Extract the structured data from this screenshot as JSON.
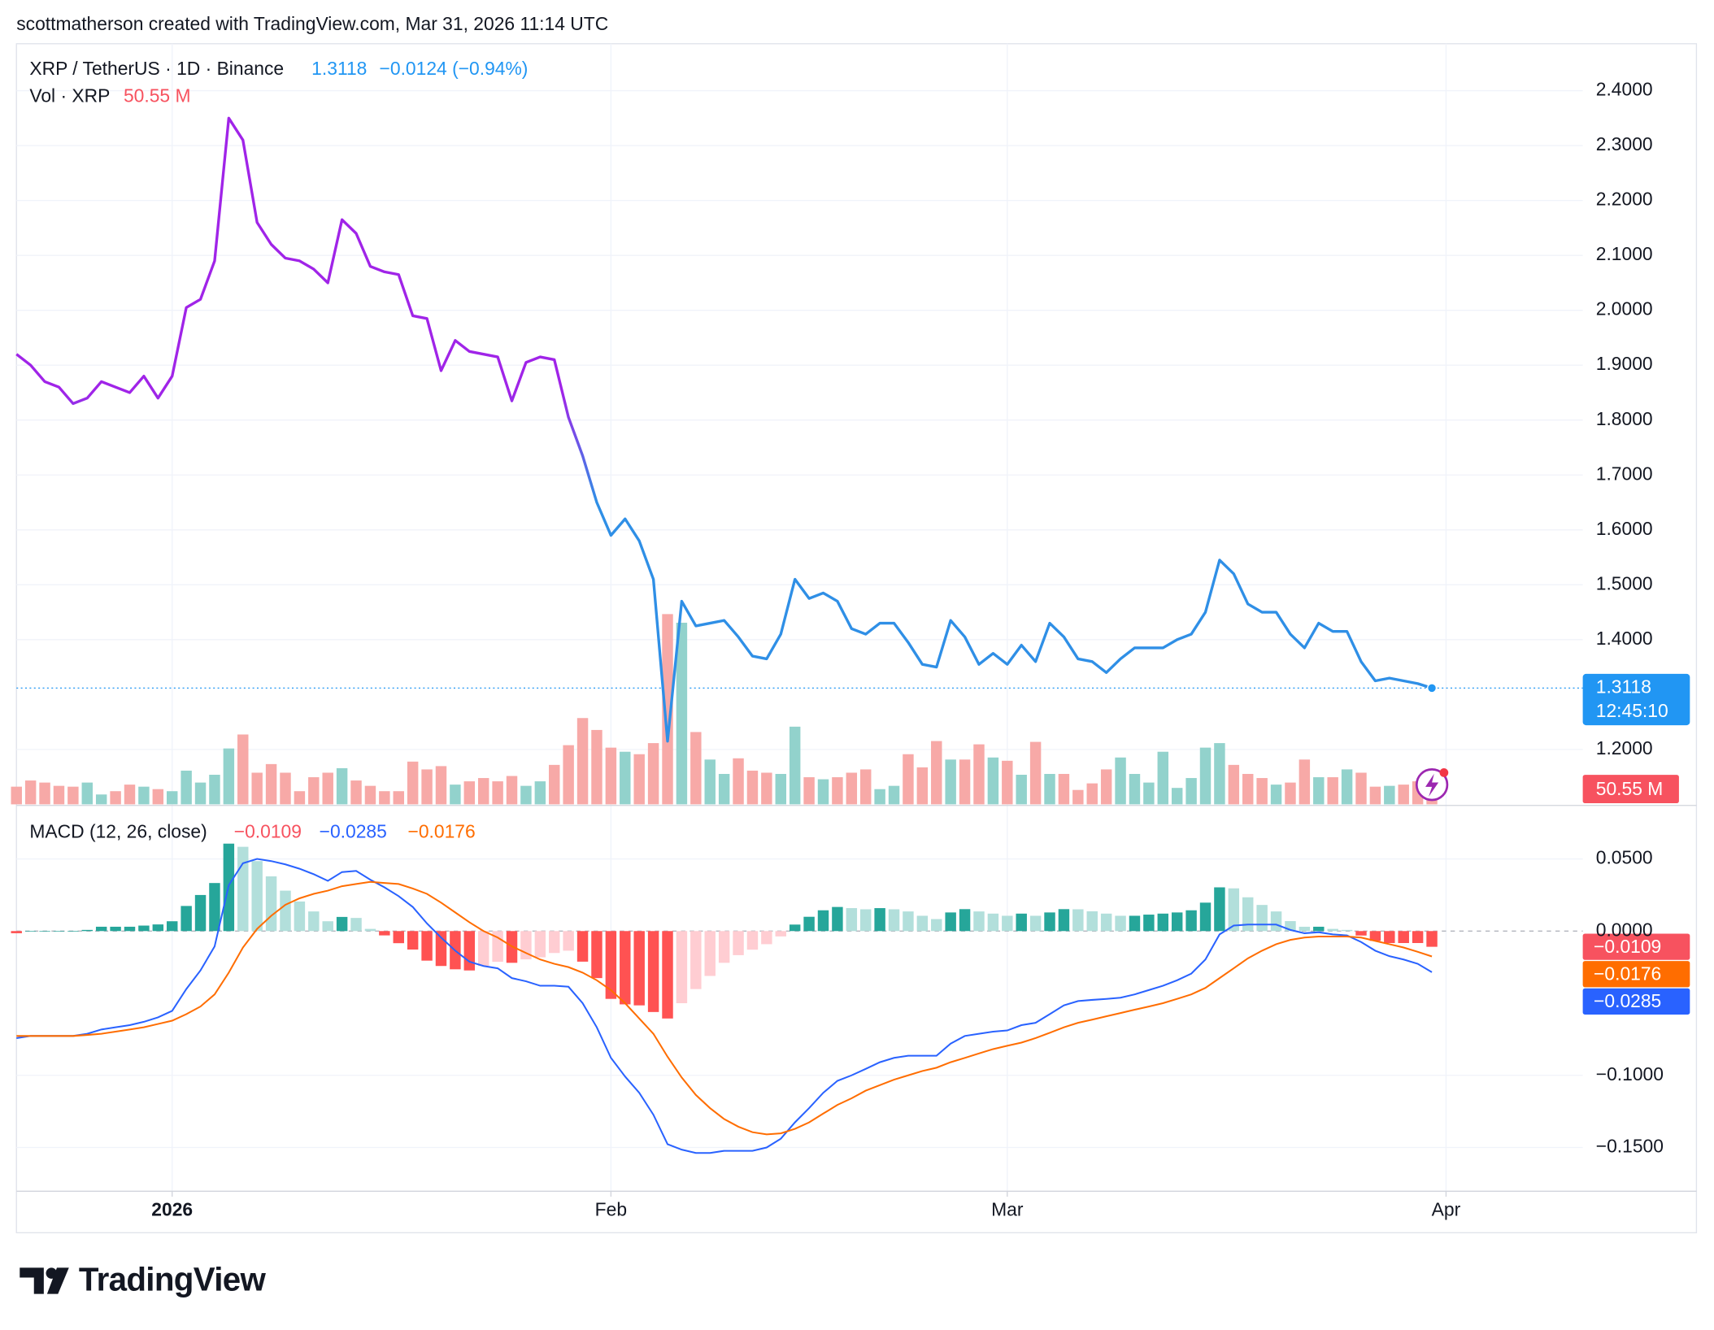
{
  "header": {
    "credit": "scottmatherson created with TradingView.com, Mar 31, 2026 11:14 UTC",
    "brand": "TradingView"
  },
  "chart_data": [
    {
      "type": "line",
      "title": "XRP / TetherUS · 1D · Binance",
      "change_label": "−0.0124 (−0.94%)",
      "countdown": "12:45:10",
      "gradient": [
        "#a024e8",
        "#2f8fe6"
      ],
      "color": "#2196f3",
      "grid": true,
      "x": [
        0,
        1,
        2,
        3,
        4,
        5,
        6,
        7,
        8,
        9,
        10,
        11,
        12,
        13,
        14,
        15,
        16,
        17,
        18,
        19,
        20,
        21,
        22,
        23,
        24,
        25,
        26,
        27,
        28,
        29,
        30,
        31,
        32,
        33,
        34,
        35,
        36,
        37,
        38,
        39,
        40,
        41,
        42,
        43,
        44,
        45,
        46,
        47,
        48,
        49,
        50,
        51,
        52,
        53,
        54,
        55,
        56,
        57,
        58,
        59,
        60,
        61,
        62,
        63,
        64,
        65,
        66,
        67,
        68,
        69,
        70,
        71,
        72,
        73,
        74,
        75,
        76,
        77,
        78,
        79,
        80,
        81,
        82,
        83,
        84,
        85,
        86,
        87,
        88,
        89,
        90,
        91,
        92,
        93,
        94,
        95,
        96,
        97,
        98,
        99,
        100
      ],
      "xlim": [
        0,
        110.66
      ],
      "values": [
        1.92,
        1.9,
        1.87,
        1.86,
        1.83,
        1.84,
        1.87,
        1.86,
        1.85,
        1.88,
        1.84,
        1.88,
        2.005,
        2.02,
        2.09,
        2.35,
        2.31,
        2.16,
        2.12,
        2.095,
        2.09,
        2.075,
        2.05,
        2.165,
        2.14,
        2.08,
        2.07,
        2.065,
        1.99,
        1.985,
        1.89,
        1.945,
        1.925,
        1.92,
        1.915,
        1.835,
        1.905,
        1.915,
        1.91,
        1.805,
        1.735,
        1.65,
        1.59,
        1.62,
        1.58,
        1.51,
        1.215,
        1.47,
        1.425,
        1.43,
        1.435,
        1.405,
        1.37,
        1.365,
        1.41,
        1.51,
        1.475,
        1.485,
        1.47,
        1.42,
        1.41,
        1.43,
        1.43,
        1.395,
        1.355,
        1.35,
        1.435,
        1.405,
        1.355,
        1.375,
        1.355,
        1.39,
        1.36,
        1.43,
        1.405,
        1.365,
        1.36,
        1.34,
        1.365,
        1.385,
        1.385,
        1.385,
        1.4,
        1.41,
        1.45,
        1.545,
        1.52,
        1.465,
        1.45,
        1.45,
        1.41,
        1.385,
        1.43,
        1.415,
        1.415,
        1.36,
        1.325,
        1.33,
        1.325,
        1.32,
        1.3118
      ],
      "ylim": [
        1.1,
        2.4856
      ],
      "yticks": [
        {
          "value": 2.4,
          "label": "2.4000"
        },
        {
          "value": 2.3,
          "label": "2.3000"
        },
        {
          "value": 2.2,
          "label": "2.2000"
        },
        {
          "value": 2.1,
          "label": "2.1000"
        },
        {
          "value": 2.0,
          "label": "2.0000"
        },
        {
          "value": 1.9,
          "label": "1.9000"
        },
        {
          "value": 1.8,
          "label": "1.8000"
        },
        {
          "value": 1.7,
          "label": "1.7000"
        },
        {
          "value": 1.6,
          "label": "1.6000"
        },
        {
          "value": 1.5,
          "label": "1.5000"
        },
        {
          "value": 1.4,
          "label": "1.4000"
        },
        {
          "value": 1.2,
          "label": "1.2000"
        }
      ]
    },
    {
      "type": "bar",
      "title": "Vol · XRP",
      "up_color": "#92d2cc",
      "down_color": "#f7a9a7",
      "label_color": "#f7525f",
      "x": [
        0,
        1,
        2,
        3,
        4,
        5,
        6,
        7,
        8,
        9,
        10,
        11,
        12,
        13,
        14,
        15,
        16,
        17,
        18,
        19,
        20,
        21,
        22,
        23,
        24,
        25,
        26,
        27,
        28,
        29,
        30,
        31,
        32,
        33,
        34,
        35,
        36,
        37,
        38,
        39,
        40,
        41,
        42,
        43,
        44,
        45,
        46,
        47,
        48,
        49,
        50,
        51,
        52,
        53,
        54,
        55,
        56,
        57,
        58,
        59,
        60,
        61,
        62,
        63,
        64,
        65,
        66,
        67,
        68,
        69,
        70,
        71,
        72,
        73,
        74,
        75,
        76,
        77,
        78,
        79,
        80,
        81,
        82,
        83,
        84,
        85,
        86,
        87,
        88,
        89,
        90,
        91,
        92,
        93,
        94,
        95,
        96,
        97,
        98,
        99,
        100
      ],
      "values": [
        43,
        58,
        53,
        45,
        43,
        53,
        24,
        32,
        48,
        43,
        37,
        32,
        82,
        53,
        72,
        136,
        170,
        77,
        98,
        77,
        32,
        66,
        77,
        88,
        58,
        45,
        32,
        32,
        104,
        85,
        93,
        48,
        56,
        64,
        56,
        69,
        45,
        56,
        96,
        144,
        210,
        181,
        138,
        128,
        122,
        149,
        463,
        442,
        176,
        109,
        74,
        112,
        82,
        77,
        74,
        189,
        66,
        61,
        66,
        77,
        85,
        37,
        45,
        122,
        90,
        154,
        109,
        109,
        146,
        114,
        106,
        72,
        152,
        74,
        74,
        35,
        51,
        85,
        114,
        74,
        53,
        128,
        40,
        64,
        138,
        149,
        96,
        74,
        64,
        48,
        53,
        109,
        66,
        66,
        85,
        77,
        43,
        45,
        48,
        56,
        50.55
      ],
      "value_labels": {
        "100": "50.55 M"
      }
    },
    {
      "type": "macd",
      "title": "MACD (12, 26, close)",
      "grid": true,
      "x": [
        0,
        1,
        2,
        3,
        4,
        5,
        6,
        7,
        8,
        9,
        10,
        11,
        12,
        13,
        14,
        15,
        16,
        17,
        18,
        19,
        20,
        21,
        22,
        23,
        24,
        25,
        26,
        27,
        28,
        29,
        30,
        31,
        32,
        33,
        34,
        35,
        36,
        37,
        38,
        39,
        40,
        41,
        42,
        43,
        44,
        45,
        46,
        47,
        48,
        49,
        50,
        51,
        52,
        53,
        54,
        55,
        56,
        57,
        58,
        59,
        60,
        61,
        62,
        63,
        64,
        65,
        66,
        67,
        68,
        69,
        70,
        71,
        72,
        73,
        74,
        75,
        76,
        77,
        78,
        79,
        80,
        81,
        82,
        83,
        84,
        85,
        86,
        87,
        88,
        89,
        90,
        91,
        92,
        93,
        94,
        95,
        96,
        97,
        98,
        99,
        100
      ],
      "xlim": [
        0,
        110.66
      ],
      "xticks": [
        {
          "value": 11,
          "label": "2026"
        },
        {
          "value": 42,
          "label": "Feb"
        },
        {
          "value": 70,
          "label": "Mar"
        },
        {
          "value": 101,
          "label": "Apr"
        }
      ],
      "ylim": [
        -0.1803,
        0.0848
      ],
      "yticks": [
        {
          "value": 0.05,
          "label": "0.0500"
        },
        {
          "value": 0,
          "label": "0.0000"
        },
        {
          "value": -0.1,
          "label": "−0.1000"
        },
        {
          "value": -0.15,
          "label": "−0.1500"
        }
      ],
      "series": [
        {
          "type": "histogram",
          "colors": [
            "#26a69a",
            "#b2dfdb",
            "#ff5252",
            "#ffcdd2"
          ],
          "color": "#f7525f",
          "values": [
            -0.0015,
            0,
            0,
            0,
            0,
            0.0008,
            0.003,
            0.003,
            0.003,
            0.0038,
            0.0046,
            0.0068,
            0.0174,
            0.025,
            0.0333,
            0.0606,
            0.0584,
            0.0485,
            0.0379,
            0.028,
            0.0205,
            0.0136,
            0.0068,
            0.0098,
            0.0091,
            0.0015,
            -0.003,
            -0.0084,
            -0.0128,
            -0.0205,
            -0.0242,
            -0.0265,
            -0.0273,
            -0.0242,
            -0.0213,
            -0.022,
            -0.0196,
            -0.0182,
            -0.0152,
            -0.0136,
            -0.0212,
            -0.0326,
            -0.047,
            -0.0508,
            -0.0515,
            -0.0561,
            -0.0606,
            -0.05,
            -0.0402,
            -0.0311,
            -0.022,
            -0.0167,
            -0.0129,
            -0.0091,
            -0.0037,
            0.0045,
            0.0099,
            0.0144,
            0.0167,
            0.0159,
            0.0151,
            0.0159,
            0.0151,
            0.0136,
            0.0106,
            0.0083,
            0.0129,
            0.0152,
            0.0136,
            0.0121,
            0.0106,
            0.0121,
            0.0106,
            0.0129,
            0.0152,
            0.0151,
            0.0137,
            0.0121,
            0.0106,
            0.0106,
            0.0114,
            0.0121,
            0.0129,
            0.0144,
            0.0197,
            0.0303,
            0.0296,
            0.0234,
            0.0181,
            0.0136,
            0.0069,
            0.003,
            0.003,
            0.0015,
            0.0008,
            -0.0031,
            -0.0068,
            -0.0083,
            -0.0083,
            -0.0083,
            -0.0109
          ],
          "value_labels": {
            "100": "−0.0109"
          }
        },
        {
          "type": "line",
          "color": "#2962ff",
          "values": [
            -0.0742,
            -0.0727,
            -0.0727,
            -0.0727,
            -0.0727,
            -0.0712,
            -0.0682,
            -0.0667,
            -0.0652,
            -0.0629,
            -0.0598,
            -0.0553,
            -0.0402,
            -0.0273,
            -0.0106,
            0.0318,
            0.047,
            0.05,
            0.0485,
            0.0462,
            0.0432,
            0.0394,
            0.0348,
            0.0409,
            0.0417,
            0.0356,
            0.0303,
            0.0242,
            0.0167,
            0.0053,
            -0.0045,
            -0.0136,
            -0.0212,
            -0.0242,
            -0.0258,
            -0.0326,
            -0.0348,
            -0.0379,
            -0.0379,
            -0.0386,
            -0.05,
            -0.0667,
            -0.0879,
            -0.1008,
            -0.1121,
            -0.1273,
            -0.1477,
            -0.1515,
            -0.1538,
            -0.1538,
            -0.1523,
            -0.1523,
            -0.1523,
            -0.15,
            -0.1439,
            -0.1326,
            -0.1227,
            -0.1121,
            -0.1038,
            -0.1,
            -0.0955,
            -0.0909,
            -0.0879,
            -0.0864,
            -0.0864,
            -0.0864,
            -0.078,
            -0.0727,
            -0.0712,
            -0.0697,
            -0.0689,
            -0.0652,
            -0.0636,
            -0.0576,
            -0.0515,
            -0.0485,
            -0.0477,
            -0.047,
            -0.0462,
            -0.0439,
            -0.0409,
            -0.0379,
            -0.0341,
            -0.0295,
            -0.0197,
            -0.0023,
            0.0038,
            0.0045,
            0.0045,
            0.0045,
            0.0008,
            -0.0015,
            -0.0008,
            -0.0023,
            -0.003,
            -0.0076,
            -0.0136,
            -0.0174,
            -0.0197,
            -0.0227,
            -0.0285
          ],
          "value_labels": {
            "100": "−0.0285"
          }
        },
        {
          "type": "line",
          "color": "#ff6d00",
          "values": [
            -0.0727,
            -0.0727,
            -0.0727,
            -0.0727,
            -0.0727,
            -0.072,
            -0.0712,
            -0.0697,
            -0.0682,
            -0.0667,
            -0.0644,
            -0.0621,
            -0.0576,
            -0.0523,
            -0.0439,
            -0.0288,
            -0.0114,
            0.0015,
            0.0106,
            0.0182,
            0.0227,
            0.0258,
            0.028,
            0.0311,
            0.0326,
            0.0341,
            0.0333,
            0.0326,
            0.0295,
            0.0258,
            0.0197,
            0.0129,
            0.0061,
            0,
            -0.0045,
            -0.0106,
            -0.0152,
            -0.0197,
            -0.0227,
            -0.025,
            -0.0288,
            -0.0341,
            -0.0409,
            -0.05,
            -0.0606,
            -0.0712,
            -0.0871,
            -0.1015,
            -0.1136,
            -0.1227,
            -0.1303,
            -0.1356,
            -0.1394,
            -0.1409,
            -0.1402,
            -0.1371,
            -0.1326,
            -0.1265,
            -0.1205,
            -0.1159,
            -0.1106,
            -0.1068,
            -0.103,
            -0.1,
            -0.097,
            -0.0947,
            -0.0909,
            -0.0879,
            -0.0848,
            -0.0818,
            -0.0795,
            -0.0773,
            -0.0742,
            -0.0705,
            -0.0667,
            -0.0636,
            -0.0614,
            -0.0591,
            -0.0568,
            -0.0545,
            -0.0523,
            -0.05,
            -0.047,
            -0.0439,
            -0.0394,
            -0.0326,
            -0.0258,
            -0.0189,
            -0.0136,
            -0.0091,
            -0.0061,
            -0.0045,
            -0.0038,
            -0.0038,
            -0.0038,
            -0.0045,
            -0.0068,
            -0.0091,
            -0.0114,
            -0.0144,
            -0.0176
          ],
          "value_labels": {
            "100": "−0.0176"
          }
        }
      ]
    }
  ]
}
